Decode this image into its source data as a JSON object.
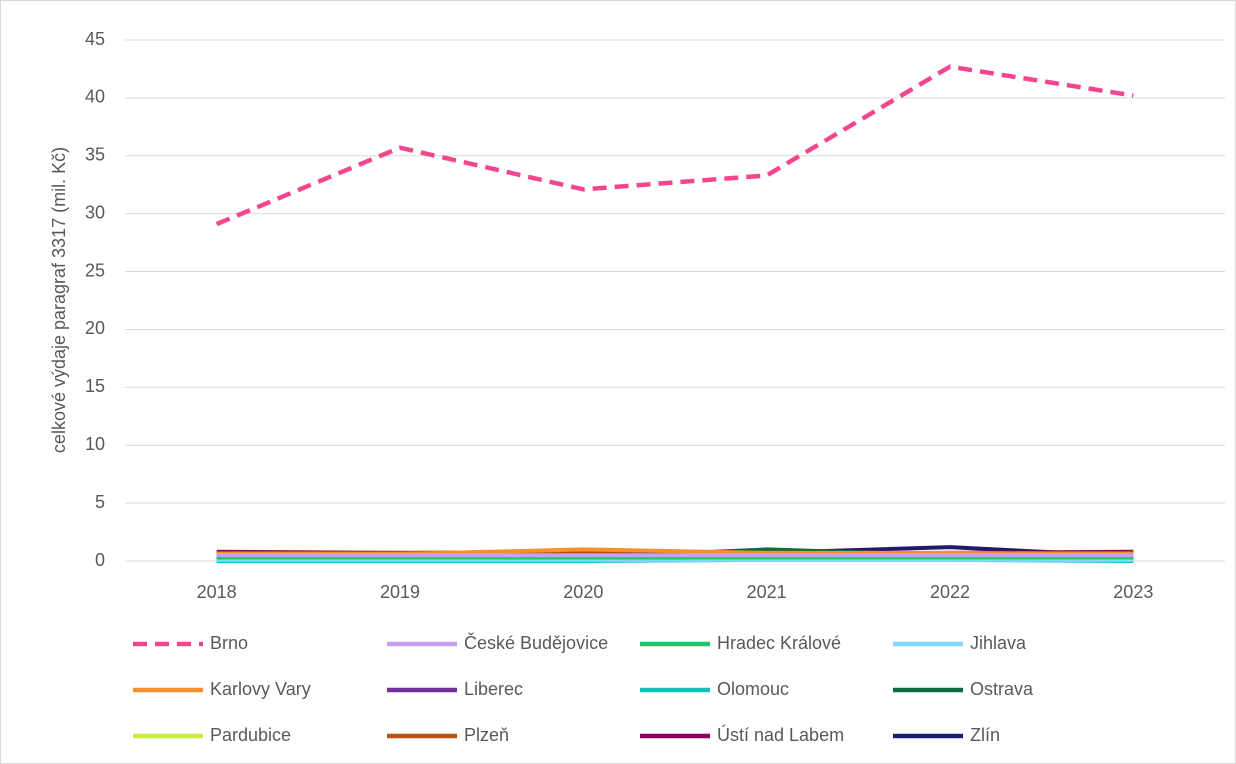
{
  "chart_data": {
    "type": "line",
    "y_label": "celkové výdaje paragraf 3317 (mil. Kč)",
    "categories": [
      "2018",
      "2019",
      "2020",
      "2021",
      "2022",
      "2023"
    ],
    "ylim": [
      0,
      45
    ],
    "yticks": [
      0,
      5,
      10,
      15,
      20,
      25,
      30,
      35,
      40,
      45
    ],
    "grid": true,
    "series": [
      {
        "name": "Brno",
        "color": "#f4468f",
        "line_style": "dashed",
        "values": [
          29.1,
          35.7,
          32.1,
          33.3,
          42.7,
          40.2
        ]
      },
      {
        "name": "České Budějovice",
        "color": "#c9a0f0",
        "values": [
          0.5,
          0.5,
          0.5,
          0.5,
          0.5,
          0.5
        ]
      },
      {
        "name": "Hradec Králové",
        "color": "#1fc46c",
        "values": [
          0.3,
          0.3,
          0.3,
          0.3,
          0.3,
          0.3
        ]
      },
      {
        "name": "Jihlava",
        "color": "#7fd8f8",
        "values": [
          0.1,
          0.1,
          0.1,
          0.1,
          0.1,
          0.1
        ]
      },
      {
        "name": "Karlovy Vary",
        "color": "#f7902a",
        "values": [
          0.6,
          0.6,
          1.0,
          0.7,
          0.7,
          0.6
        ]
      },
      {
        "name": "Liberec",
        "color": "#7030a0",
        "values": [
          0.5,
          0.5,
          0.5,
          0.6,
          0.6,
          0.5
        ]
      },
      {
        "name": "Olomouc",
        "color": "#12bfbf",
        "values": [
          0.0,
          0.0,
          0.0,
          0.1,
          0.1,
          0.0
        ]
      },
      {
        "name": "Ostrava",
        "color": "#0a6b40",
        "values": [
          0.3,
          0.2,
          0.3,
          1.0,
          0.5,
          0.3
        ]
      },
      {
        "name": "Pardubice",
        "color": "#c6f040",
        "values": [
          0.2,
          0.2,
          0.2,
          0.2,
          0.2,
          0.2
        ]
      },
      {
        "name": "Plzeň",
        "color": "#b5520c",
        "values": [
          0.7,
          0.7,
          0.8,
          0.7,
          0.6,
          0.7
        ]
      },
      {
        "name": "Ústí nad Labem",
        "color": "#8b005a",
        "values": [
          0.8,
          0.7,
          0.7,
          0.6,
          0.7,
          0.8
        ]
      },
      {
        "name": "Zlín",
        "color": "#1f1a6e",
        "values": [
          0.4,
          0.3,
          0.6,
          0.7,
          1.2,
          0.4
        ]
      }
    ]
  }
}
